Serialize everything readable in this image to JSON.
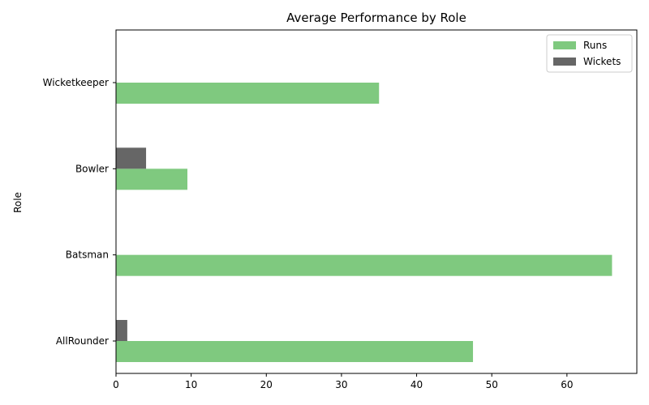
{
  "chart_data": {
    "type": "bar",
    "orientation": "horizontal",
    "title": "Average Performance by Role",
    "xlabel": "",
    "ylabel": "Role",
    "categories": [
      "AllRounder",
      "Batsman",
      "Bowler",
      "Wicketkeeper"
    ],
    "series": [
      {
        "name": "Runs",
        "values": [
          47.5,
          66.0,
          9.5,
          35.0
        ],
        "color": "#7fc97f"
      },
      {
        "name": "Wickets",
        "values": [
          1.5,
          0.0,
          4.0,
          0.0
        ],
        "color": "#666666"
      }
    ],
    "xlim": [
      0,
      69.3
    ],
    "xticks": [
      0,
      10,
      20,
      30,
      40,
      50,
      60
    ],
    "grid": false,
    "legend_position": "top-right"
  }
}
